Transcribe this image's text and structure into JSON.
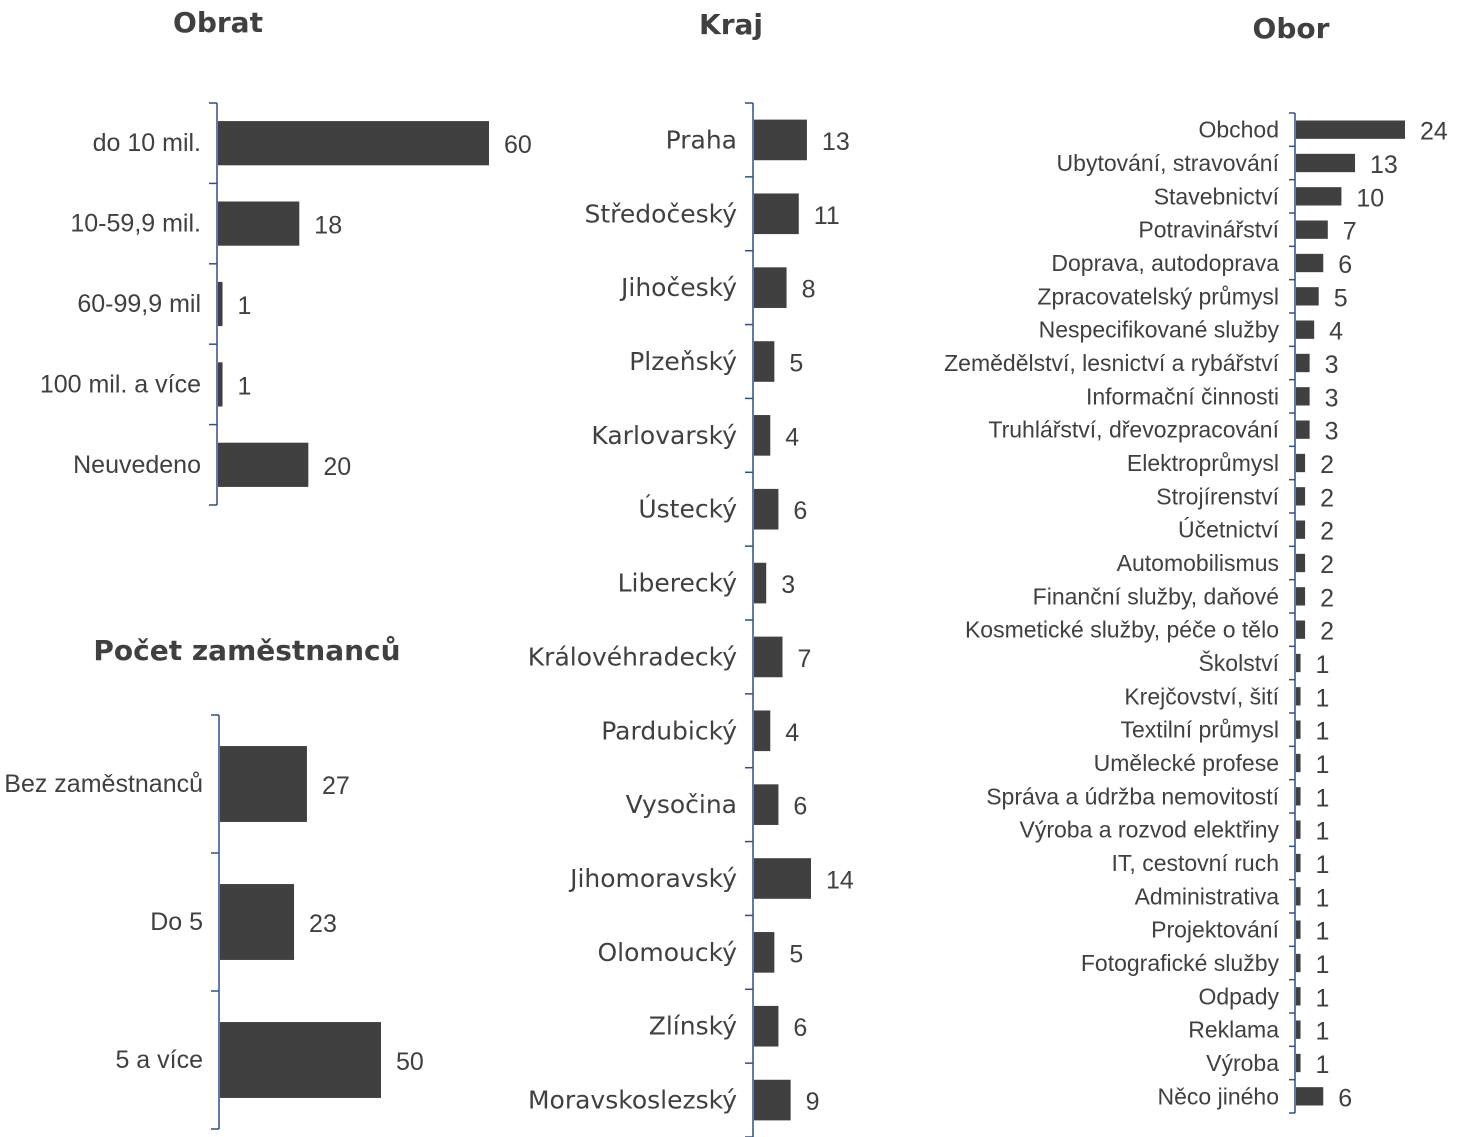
{
  "chart_data": [
    {
      "type": "bar",
      "orientation": "horizontal",
      "title": "Obrat",
      "categories": [
        "do 10 mil.",
        "10-59,9 mil.",
        "60-99,9 mil",
        "100 mil. a více",
        "Neuvedeno"
      ],
      "values": [
        60,
        18,
        1,
        1,
        20
      ],
      "color": "#404040",
      "axis_color": "#2f4f8f",
      "grid": false
    },
    {
      "type": "bar",
      "orientation": "horizontal",
      "title": "Kraj",
      "categories": [
        "Praha",
        "Středočeský",
        "Jihočeský",
        "Plzeňský",
        "Karlovarský",
        "Ústecký",
        "Liberecký",
        "Královéhradecký",
        "Pardubický",
        "Vysočina",
        "Jihomoravský",
        "Olomoucký",
        "Zlínský",
        "Moravskoslezský"
      ],
      "values": [
        13,
        11,
        8,
        5,
        4,
        6,
        3,
        7,
        4,
        6,
        14,
        5,
        6,
        9
      ],
      "color": "#404040",
      "axis_color": "#2f4f8f",
      "grid": false
    },
    {
      "type": "bar",
      "orientation": "horizontal",
      "title": "Obor",
      "categories": [
        "Obchod",
        "Ubytování, stravování",
        "Stavebnictví",
        "Potravinářství",
        "Doprava, autodoprava",
        "Zpracovatelský průmysl",
        "Nespecifikované služby",
        "Zemědělství, lesnictví a rybářství",
        "Informační činnosti",
        "Truhlářství, dřevozpracování",
        "Elektroprůmysl",
        "Strojírenství",
        "Účetnictví",
        "Automobilismus",
        "Finanční služby, daňové",
        "Kosmetické služby, péče o tělo",
        "Školství",
        "Krejčovství, šití",
        "Textilní průmysl",
        "Umělecké profese",
        "Správa a údržba nemovitostí",
        "Výroba a rozvod elektřiny",
        "IT, cestovní ruch",
        "Administrativa",
        "Projektování",
        "Fotografické služby",
        "Odpady",
        "Reklama",
        "Výroba",
        "Něco jiného"
      ],
      "values": [
        24,
        13,
        10,
        7,
        6,
        5,
        4,
        3,
        3,
        3,
        2,
        2,
        2,
        2,
        2,
        2,
        1,
        1,
        1,
        1,
        1,
        1,
        1,
        1,
        1,
        1,
        1,
        1,
        1,
        6
      ],
      "color": "#404040",
      "axis_color": "#2f4f8f",
      "grid": false
    },
    {
      "type": "bar",
      "orientation": "horizontal",
      "title": "Počet zaměstnanců",
      "categories": [
        "Bez zaměstnanců",
        "Do 5",
        "5 a více"
      ],
      "values": [
        27,
        23,
        50
      ],
      "color": "#404040",
      "axis_color": "#2f4f8f",
      "grid": false
    }
  ]
}
